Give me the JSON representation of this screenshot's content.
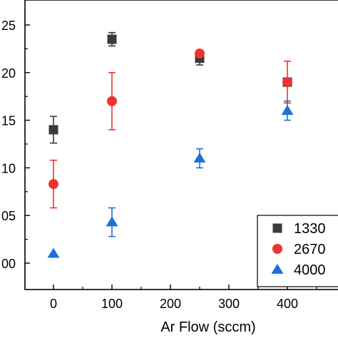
{
  "chart_data": {
    "type": "scatter",
    "title": "",
    "xlabel": "Ar Flow (sccm)",
    "ylabel": "",
    "x_ticks": [
      "0",
      "100",
      "200",
      "300",
      "400"
    ],
    "x_tick_edge": "5",
    "y_ticks": [
      "00",
      "05",
      "10",
      "15",
      "20",
      "25"
    ],
    "xlim": [
      -130,
      500
    ],
    "ylim": [
      -2.5,
      27.5
    ],
    "y_tick_values": [
      0.0,
      0.5,
      1.0,
      1.5,
      2.0,
      2.5
    ],
    "y_tick_positions": [
      0,
      5,
      10,
      15,
      20,
      25
    ],
    "legend_position": "bottom-right",
    "grid": false,
    "series": [
      {
        "name": "1330",
        "marker": "square",
        "color": "#3a3a3a",
        "points": [
          {
            "x": 0,
            "y": 14,
            "err": 1.4
          },
          {
            "x": 100,
            "y": 23.5,
            "err": 0.7
          },
          {
            "x": 250,
            "y": 21.5,
            "err": 0.7
          },
          {
            "x": 400,
            "y": 19,
            "err": 0.4
          }
        ]
      },
      {
        "name": "2670",
        "marker": "circle",
        "color": "#ee3333",
        "points": [
          {
            "x": 0,
            "y": 8.3,
            "err": 2.5
          },
          {
            "x": 100,
            "y": 17,
            "err": 3.0
          },
          {
            "x": 250,
            "y": 22,
            "err": 0.3
          },
          {
            "x": 400,
            "y": 19,
            "err": 2.2
          }
        ]
      },
      {
        "name": "4000",
        "marker": "triangle",
        "color": "#1f6fd6",
        "points": [
          {
            "x": 0,
            "y": 1,
            "err": 0
          },
          {
            "x": 100,
            "y": 4.3,
            "err": 1.5
          },
          {
            "x": 250,
            "y": 11,
            "err": 1.0
          },
          {
            "x": 400,
            "y": 16,
            "err": 1.0
          }
        ]
      }
    ]
  }
}
